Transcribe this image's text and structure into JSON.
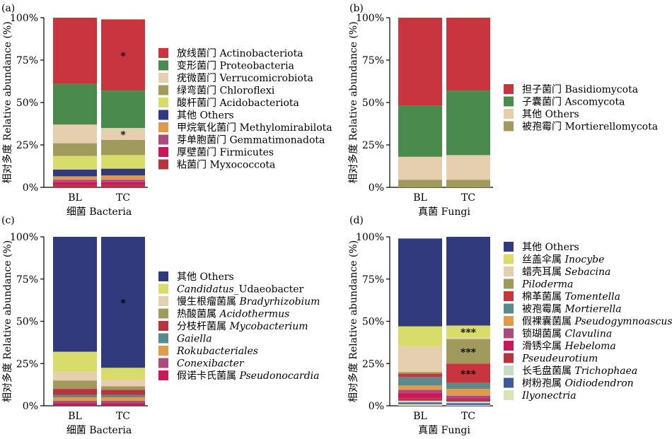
{
  "chart_data": [
    {
      "panel_label": "(a)",
      "type": "bar",
      "stacked": true,
      "ylabel": "相对多度 Relative abundance (%)",
      "xlabel": "细菌 Bacteria",
      "ylim": [
        0,
        100
      ],
      "yticks": [
        "0%",
        "25%",
        "50%",
        "75%",
        "100%"
      ],
      "categories": [
        "BL",
        "TC"
      ],
      "legend_placement": "right",
      "series": [
        {
          "name": "粘菌门 Myxococcota",
          "color": "#b5343d",
          "values": [
            1.5,
            1.5
          ]
        },
        {
          "name": "厚壁菌门 Firmicutes",
          "color": "#c8185a",
          "values": [
            1.5,
            1.5
          ]
        },
        {
          "name": "芽单胞菌门 Gemmatimonadota",
          "color": "#a84b7d",
          "values": [
            1.5,
            1.5
          ]
        },
        {
          "name": "甲烷氧化菌门 Methylomirabilota",
          "color": "#df9a4c",
          "values": [
            2,
            2.5
          ]
        },
        {
          "name": "其他 Others",
          "color": "#303a7c",
          "values": [
            4,
            4
          ]
        },
        {
          "name": "酸杆菌门 Acidobacteriota",
          "color": "#d7dc6a",
          "values": [
            8,
            8
          ]
        },
        {
          "name": "绿弯菌门 Chloroflexi",
          "color": "#a09a5c",
          "values": [
            7.5,
            9
          ]
        },
        {
          "name": "疣微菌门 Verrucomicrobiota",
          "color": "#e6cfaf",
          "values": [
            11,
            7
          ]
        },
        {
          "name": "变形菌门 Proteobacteria",
          "color": "#4a8a4c",
          "values": [
            24,
            22
          ]
        },
        {
          "name": "放线菌门 Actinobacteriota",
          "color": "#c8353f",
          "values": [
            39,
            42
          ]
        }
      ],
      "annotations": [
        {
          "category": "TC",
          "series": "放线菌门 Actinobacteriota",
          "text": "*"
        },
        {
          "category": "TC",
          "series": "疣微菌门 Verrucomicrobiota",
          "text": "*"
        }
      ]
    },
    {
      "panel_label": "(b)",
      "type": "bar",
      "stacked": true,
      "ylabel": "相对多度 Relative abundance (%)",
      "xlabel": "真菌 Fungi",
      "ylim": [
        0,
        100
      ],
      "yticks": [
        "0%",
        "25%",
        "50%",
        "75%",
        "100%"
      ],
      "categories": [
        "BL",
        "TC"
      ],
      "legend_placement": "right",
      "series": [
        {
          "name": "被孢霉门 Mortierellomycota",
          "color": "#a09a5c",
          "values": [
            4.5,
            4.5
          ]
        },
        {
          "name": "其他 Others",
          "color": "#e6cfaf",
          "values": [
            13.5,
            14.5
          ]
        },
        {
          "name": "子囊菌门 Ascomycota",
          "color": "#4a8a4c",
          "values": [
            30,
            38
          ]
        },
        {
          "name": "担子菌门 Basidiomycota",
          "color": "#c8353f",
          "values": [
            52,
            43
          ]
        }
      ],
      "annotations": []
    },
    {
      "panel_label": "(c)",
      "type": "bar",
      "stacked": true,
      "ylabel": "相对多度 Relative abundance (%)",
      "xlabel": "细菌 Bacteria",
      "ylim": [
        0,
        100
      ],
      "yticks": [
        "0%",
        "25%",
        "50%",
        "75%",
        "100%"
      ],
      "categories": [
        "BL",
        "TC"
      ],
      "legend_placement": "right",
      "series": [
        {
          "name": "假诺卡氏菌属 Pseudonocardia",
          "color": "#c8185a",
          "values": [
            1.5,
            1.5
          ]
        },
        {
          "name": "Conexibacter",
          "color": "#a84b7d",
          "values": [
            1.5,
            1.5
          ]
        },
        {
          "name": "Rokubacteriales",
          "color": "#df9a4c",
          "values": [
            2,
            2
          ]
        },
        {
          "name": "Gaiella",
          "color": "#5a8a8c",
          "values": [
            1.5,
            1.5
          ]
        },
        {
          "name": "分枝杆菌属 Mycobacterium",
          "color": "#b5343d",
          "values": [
            3.5,
            3
          ]
        },
        {
          "name": "热酸菌属 Acidothermus",
          "color": "#a09a5c",
          "values": [
            5,
            2
          ]
        },
        {
          "name": "慢生根瘤菌属 Bradyrhizobium",
          "color": "#e6cfaf",
          "values": [
            5,
            4
          ]
        },
        {
          "name": "Candidatus_Udaeobacter",
          "color": "#d7dc6a",
          "values": [
            12,
            7
          ]
        },
        {
          "name": "其他 Others",
          "color": "#303a7c",
          "values": [
            68,
            77.5
          ]
        }
      ],
      "annotations": [
        {
          "category": "TC",
          "series": "其他 Others",
          "text": "*"
        }
      ]
    },
    {
      "panel_label": "(d)",
      "type": "bar",
      "stacked": true,
      "ylabel": "相对多度 Relative abundance (%)",
      "xlabel": "真菌 Fungi",
      "ylim": [
        0,
        100
      ],
      "yticks": [
        "0%",
        "25%",
        "50%",
        "75%",
        "100%"
      ],
      "categories": [
        "BL",
        "TC"
      ],
      "legend_placement": "right",
      "series": [
        {
          "name": "Ilyonectria",
          "color": "#d8e3b8",
          "values": [
            1,
            0.5
          ]
        },
        {
          "name": "树粉孢属 Oidiodendron",
          "color": "#3a5a98",
          "values": [
            1,
            1
          ]
        },
        {
          "name": "长毛盘菌属 Trichophaea",
          "color": "#c5dcc8",
          "values": [
            1,
            1
          ]
        },
        {
          "name": "Pseudeurotium",
          "color": "#b5343d",
          "values": [
            1.5,
            1
          ]
        },
        {
          "name": "滑锈伞属 Hebeloma",
          "color": "#c8185a",
          "values": [
            3,
            1
          ]
        },
        {
          "name": "锁瑚菌属 Clavulina",
          "color": "#a84b7d",
          "values": [
            2,
            1.5
          ]
        },
        {
          "name": "假裸囊菌属 Pseudogymnoascus",
          "color": "#df9a4c",
          "values": [
            2.5,
            4
          ]
        },
        {
          "name": "被孢霉属 Mortierella",
          "color": "#5a8a8c",
          "values": [
            5,
            3.5
          ]
        },
        {
          "name": "棉革菌属 Tomentella",
          "color": "#c8353f",
          "values": [
            2,
            11.5
          ]
        },
        {
          "name": "Piloderma",
          "color": "#a09a5c",
          "values": [
            1,
            14.5
          ]
        },
        {
          "name": "蜡壳耳属 Sebacina",
          "color": "#e6cfaf",
          "values": [
            15,
            1
          ]
        },
        {
          "name": "丝盖伞属 Inocybe",
          "color": "#d7dc6a",
          "values": [
            12,
            7
          ]
        },
        {
          "name": "其他 Others",
          "color": "#303a7c",
          "values": [
            52,
            52.5
          ]
        }
      ],
      "annotations": [
        {
          "category": "TC",
          "series": "丝盖伞属 Inocybe",
          "text": "***"
        },
        {
          "category": "TC",
          "series": "Piloderma",
          "text": "***"
        },
        {
          "category": "TC",
          "series": "棉革菌属 Tomentella",
          "text": "***"
        }
      ]
    }
  ]
}
